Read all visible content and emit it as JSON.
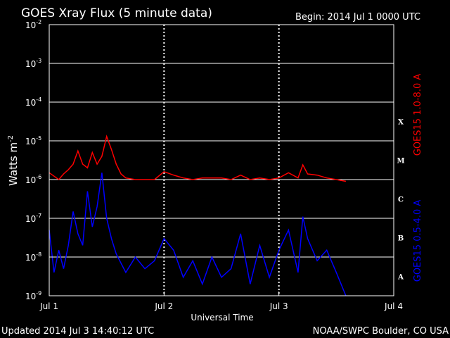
{
  "header": {
    "title": "GOES Xray Flux (5 minute data)",
    "begin": "Begin:  2014 Jul 1 0000 UTC"
  },
  "footer": {
    "updated": "Updated 2014 Jul  3 14:40:12 UTC",
    "credit": "NOAA/SWPC Boulder, CO USA"
  },
  "chart_data": {
    "type": "line",
    "title": "GOES Xray Flux (5 minute data)",
    "xlabel": "Universal Time",
    "ylabel": "Watts m",
    "ylabel_exponent": "-2",
    "y_scale": "log",
    "ylim": [
      1e-09,
      0.01
    ],
    "xlim": [
      "2014-07-01 00:00",
      "2014-07-04 00:00"
    ],
    "x_ticks": [
      "Jul 1",
      "Jul 2",
      "Jul 3",
      "Jul 4"
    ],
    "y_ticks": [
      {
        "base": "10",
        "exp": "-2"
      },
      {
        "base": "10",
        "exp": "-3"
      },
      {
        "base": "10",
        "exp": "-4"
      },
      {
        "base": "10",
        "exp": "-5"
      },
      {
        "base": "10",
        "exp": "-6"
      },
      {
        "base": "10",
        "exp": "-7"
      },
      {
        "base": "10",
        "exp": "-8"
      },
      {
        "base": "10",
        "exp": "-9"
      }
    ],
    "flare_classes": [
      "X",
      "M",
      "C",
      "B",
      "A"
    ],
    "grid": true,
    "series": [
      {
        "name": "GOES15 1.0-8.0 A",
        "color": "#ff0000",
        "x": [
          "2014-07-01 00:00",
          "2014-07-01 02:00",
          "2014-07-01 03:00",
          "2014-07-01 04:00",
          "2014-07-01 05:00",
          "2014-07-01 06:00",
          "2014-07-01 07:00",
          "2014-07-01 08:00",
          "2014-07-01 09:00",
          "2014-07-01 10:00",
          "2014-07-01 11:00",
          "2014-07-01 12:00",
          "2014-07-01 13:00",
          "2014-07-01 14:00",
          "2014-07-01 15:00",
          "2014-07-01 16:00",
          "2014-07-01 18:00",
          "2014-07-01 20:00",
          "2014-07-01 22:00",
          "2014-07-02 00:00",
          "2014-07-02 02:00",
          "2014-07-02 04:00",
          "2014-07-02 06:00",
          "2014-07-02 08:00",
          "2014-07-02 10:00",
          "2014-07-02 12:00",
          "2014-07-02 14:00",
          "2014-07-02 16:00",
          "2014-07-02 18:00",
          "2014-07-02 20:00",
          "2014-07-02 22:00",
          "2014-07-03 00:00",
          "2014-07-03 02:00",
          "2014-07-03 04:00",
          "2014-07-03 05:00",
          "2014-07-03 06:00",
          "2014-07-03 08:00",
          "2014-07-03 10:00",
          "2014-07-03 12:00",
          "2014-07-03 14:00"
        ],
        "y": [
          1.5e-06,
          1e-06,
          1.4e-06,
          1.8e-06,
          2.5e-06,
          5.5e-06,
          2.5e-06,
          2e-06,
          5e-06,
          2.5e-06,
          4e-06,
          1.3e-05,
          6e-06,
          2.5e-06,
          1.4e-06,
          1.1e-06,
          1e-06,
          1e-06,
          1e-06,
          1.6e-06,
          1.3e-06,
          1.1e-06,
          1e-06,
          1.1e-06,
          1.1e-06,
          1.1e-06,
          1e-06,
          1.3e-06,
          1e-06,
          1.1e-06,
          1e-06,
          1.1e-06,
          1.5e-06,
          1.1e-06,
          2.4e-06,
          1.4e-06,
          1.3e-06,
          1.1e-06,
          1e-06,
          9e-07
        ]
      },
      {
        "name": "GOES15 0.5-4.0 A",
        "color": "#0000ff",
        "x": [
          "2014-07-01 00:00",
          "2014-07-01 01:00",
          "2014-07-01 02:00",
          "2014-07-01 03:00",
          "2014-07-01 04:00",
          "2014-07-01 05:00",
          "2014-07-01 06:00",
          "2014-07-01 07:00",
          "2014-07-01 08:00",
          "2014-07-01 09:00",
          "2014-07-01 10:00",
          "2014-07-01 11:00",
          "2014-07-01 12:00",
          "2014-07-01 13:00",
          "2014-07-01 14:00",
          "2014-07-01 16:00",
          "2014-07-01 18:00",
          "2014-07-01 20:00",
          "2014-07-01 22:00",
          "2014-07-02 00:00",
          "2014-07-02 02:00",
          "2014-07-02 04:00",
          "2014-07-02 06:00",
          "2014-07-02 08:00",
          "2014-07-02 10:00",
          "2014-07-02 12:00",
          "2014-07-02 14:00",
          "2014-07-02 16:00",
          "2014-07-02 18:00",
          "2014-07-02 20:00",
          "2014-07-02 22:00",
          "2014-07-03 00:00",
          "2014-07-03 02:00",
          "2014-07-03 04:00",
          "2014-07-03 05:00",
          "2014-07-03 06:00",
          "2014-07-03 08:00",
          "2014-07-03 10:00",
          "2014-07-03 12:00",
          "2014-07-03 14:00"
        ],
        "y": [
          5e-08,
          4e-09,
          1.5e-08,
          5e-09,
          2e-08,
          1.5e-07,
          4e-08,
          2e-08,
          5e-07,
          6e-08,
          2e-07,
          1.5e-06,
          1e-07,
          3e-08,
          1.2e-08,
          4e-09,
          1e-08,
          5e-09,
          8e-09,
          3e-08,
          1.5e-08,
          3e-09,
          8e-09,
          2e-09,
          1e-08,
          3e-09,
          5e-09,
          4e-08,
          2e-09,
          2e-08,
          3e-09,
          1.5e-08,
          5e-08,
          4e-09,
          1.1e-07,
          3e-08,
          8e-09,
          1.5e-08,
          4e-09,
          1e-09
        ]
      }
    ]
  }
}
